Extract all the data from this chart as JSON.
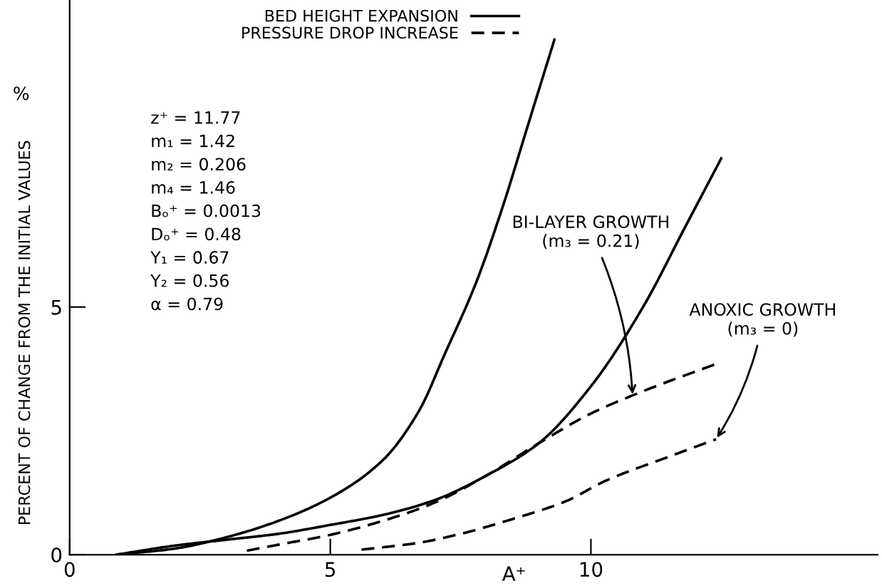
{
  "chart_data": {
    "type": "line",
    "xlabel": "A⁺",
    "ylabel": "PERCENT OF CHANGE FROM THE INITIAL VALUES",
    "xlim": [
      0,
      15.5
    ],
    "ylim": [
      0,
      11.2
    ],
    "xticks": [
      0,
      5,
      10
    ],
    "yticks": [
      0,
      5
    ],
    "grid": false,
    "legend": "top left",
    "marker": "none",
    "series": [
      {
        "name": "BED HEIGHT EXPANSION",
        "color": "#000000",
        "line_style": "solid",
        "x": [
          0.9,
          2,
          3,
          4,
          5,
          6,
          6.7,
          7.2,
          7.8,
          8.3,
          8.8,
          9.3
        ],
        "values": [
          0,
          0.12,
          0.35,
          0.68,
          1.15,
          1.9,
          2.9,
          4.06,
          5.5,
          7,
          8.7,
          10.4
        ]
      },
      {
        "color": "#000000",
        "line_style": "solid",
        "x": [
          0.9,
          2,
          3,
          4,
          5,
          6,
          7,
          8,
          9,
          10,
          11,
          11.8,
          12.5
        ],
        "values": [
          0,
          0.18,
          0.3,
          0.42,
          0.6,
          0.8,
          1.1,
          1.6,
          2.25,
          3.4,
          5.0,
          6.6,
          8.0
        ]
      },
      {
        "name": "PRESSURE DROP INCREASE",
        "color": "#000000",
        "line_style": "dashed",
        "x": [
          3.4,
          4,
          5,
          6,
          7,
          8,
          9,
          10,
          11,
          12.4
        ],
        "values": [
          0.08,
          0.2,
          0.4,
          0.68,
          1.05,
          1.6,
          2.25,
          2.85,
          3.3,
          3.85
        ]
      },
      {
        "color": "#000000",
        "line_style": "dashed",
        "x": [
          5.6,
          6.7,
          7.5,
          8.5,
          9.5,
          10.3,
          11.5,
          12.4
        ],
        "values": [
          0.1,
          0.24,
          0.42,
          0.72,
          1.07,
          1.5,
          1.98,
          2.33
        ]
      }
    ],
    "annotations": [
      "%",
      "z⁺ = 11.77",
      "m₁ = 1.42",
      "m₂ = 0.206",
      "m₄ = 1.46",
      "Bₒ⁺ = 0.0013",
      "Dₒ⁺ = 0.48",
      "Y₁ = 0.67",
      "Y₂ = 0.56",
      "α = 0.79",
      {
        "text": "BI-LAYER GROWTH\n(m₃ = 0.21)",
        "x": 10.8,
        "y": 3.2
      },
      {
        "text": "ANOXIC GROWTH\n(m₃ = 0)",
        "x": 12.4,
        "y": 2.33
      }
    ]
  }
}
